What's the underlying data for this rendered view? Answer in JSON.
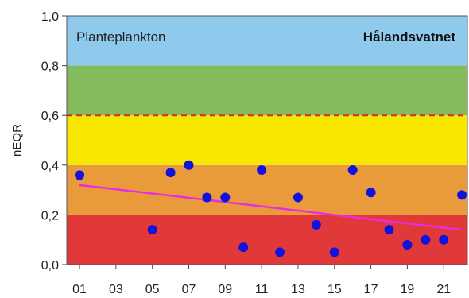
{
  "chart_data": {
    "type": "scatter",
    "title": "Planteplankton",
    "subtitle": "Hålandsvatnet",
    "ylabel": "nEQR",
    "xlabel": "",
    "xlim": [
      0.3,
      22.3
    ],
    "ylim": [
      0,
      1.0
    ],
    "y_ticks": [
      "0,0",
      "0,2",
      "0,4",
      "0,6",
      "0,8",
      "1,0"
    ],
    "x_ticks": [
      "01",
      "03",
      "05",
      "07",
      "09",
      "11",
      "13",
      "15",
      "17",
      "19",
      "21"
    ],
    "x_tick_values": [
      1,
      3,
      5,
      7,
      9,
      11,
      13,
      15,
      17,
      19,
      21
    ],
    "grid": false,
    "bands": [
      {
        "from": 0.0,
        "to": 0.2,
        "color": "#e1383a"
      },
      {
        "from": 0.2,
        "to": 0.4,
        "color": "#e99a3b"
      },
      {
        "from": 0.4,
        "to": 0.6,
        "color": "#f7e700"
      },
      {
        "from": 0.6,
        "to": 0.8,
        "color": "#84bb5c"
      },
      {
        "from": 0.8,
        "to": 1.0,
        "color": "#8fc9ec"
      }
    ],
    "reference_line": {
      "y": 0.6,
      "color": "#d62a2a",
      "style": "dashed"
    },
    "series": [
      {
        "color": "#1212dd",
        "x": [
          1,
          5,
          6,
          7,
          8,
          9,
          10,
          11,
          12,
          13,
          14,
          15,
          16,
          17,
          18,
          19,
          20,
          21,
          22
        ],
        "values": [
          0.36,
          0.14,
          0.37,
          0.4,
          0.27,
          0.27,
          0.07,
          0.38,
          0.05,
          0.27,
          0.16,
          0.05,
          0.38,
          0.29,
          0.14,
          0.08,
          0.1,
          0.1,
          0.28
        ]
      }
    ],
    "trend_line": {
      "x": [
        1,
        22
      ],
      "values": [
        0.32,
        0.14
      ],
      "color": "#e62de0"
    }
  }
}
